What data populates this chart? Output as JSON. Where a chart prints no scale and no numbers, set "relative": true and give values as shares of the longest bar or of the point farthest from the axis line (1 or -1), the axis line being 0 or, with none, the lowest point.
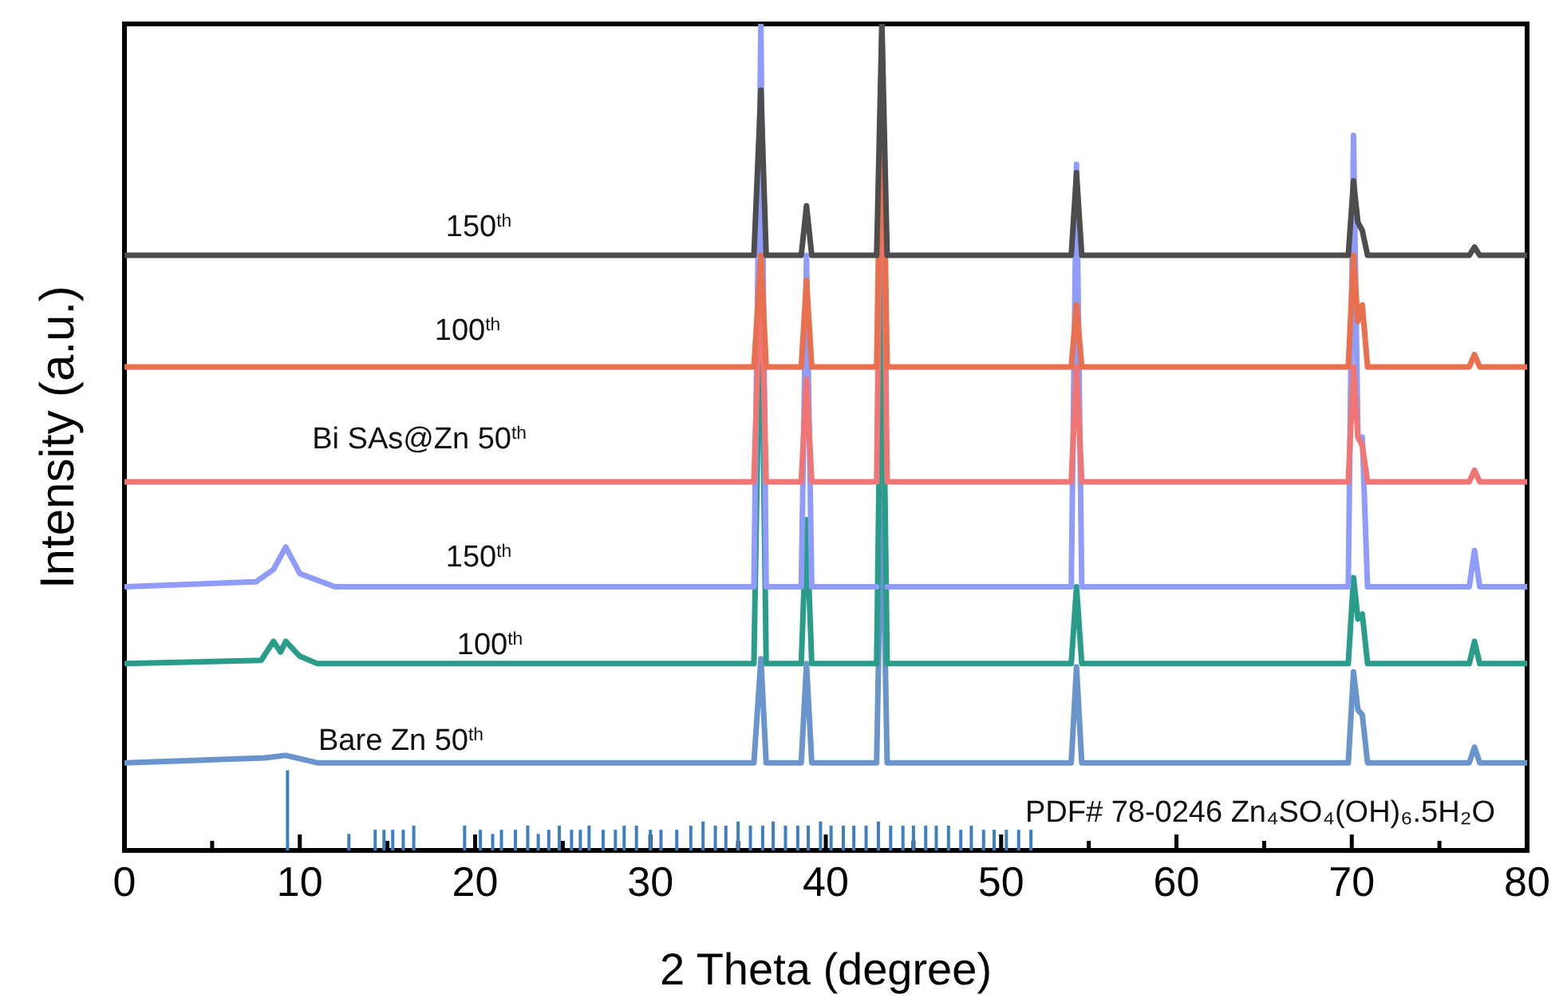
{
  "chart_data": {
    "type": "line",
    "relative": true,
    "xlabel": "2 Theta (degree)",
    "ylabel": "Intensity (a.u.)",
    "xlim": [
      0,
      80
    ],
    "xticks": [
      0,
      {
        "value": 5,
        "label": null
      },
      10,
      {
        "value": 15,
        "label": null
      },
      20,
      {
        "value": 25,
        "label": null
      },
      30,
      {
        "value": 35,
        "label": null
      },
      40,
      {
        "value": 45,
        "label": null
      },
      50,
      {
        "value": 55,
        "label": null
      },
      60,
      {
        "value": 65,
        "label": null
      },
      70,
      {
        "value": 75,
        "label": null
      },
      80
    ],
    "legend": false,
    "grid": false,
    "line_style": "solid",
    "marker": "none",
    "series": [
      {
        "name": "150$^{th}$",
        "color": "#4d4d4d",
        "x": [
          0,
          35.9,
          36.3,
          36.6,
          38.6,
          38.9,
          39.2,
          42.9,
          43.2,
          43.5,
          54.0,
          54.3,
          54.6,
          69.8,
          70.1,
          70.35,
          70.6,
          70.9,
          76.7,
          77.0,
          77.3,
          80
        ],
        "values": [
          0.72,
          0.72,
          0.92,
          0.72,
          0.72,
          0.78,
          0.72,
          0.72,
          1.0,
          0.72,
          0.72,
          0.82,
          0.72,
          0.72,
          0.81,
          0.76,
          0.75,
          0.72,
          0.72,
          0.73,
          0.72,
          0.72
        ]
      },
      {
        "name": "100$^{th}$",
        "color": "#e8704f",
        "x": [
          0,
          35.9,
          36.3,
          36.6,
          38.6,
          38.9,
          39.2,
          42.9,
          43.2,
          43.5,
          54.0,
          54.3,
          54.6,
          69.8,
          70.1,
          70.35,
          70.6,
          70.9,
          76.7,
          77.0,
          77.3,
          80
        ],
        "values": [
          0.585,
          0.585,
          0.72,
          0.585,
          0.585,
          0.69,
          0.585,
          0.585,
          0.98,
          0.585,
          0.585,
          0.66,
          0.585,
          0.585,
          0.72,
          0.64,
          0.66,
          0.585,
          0.585,
          0.6,
          0.585,
          0.585
        ]
      },
      {
        "name": "Bi SAs@Zn 50$^{th}$",
        "color": "#f07575",
        "x": [
          0,
          35.9,
          36.3,
          36.6,
          38.6,
          38.9,
          39.2,
          42.9,
          43.2,
          43.5,
          54.0,
          54.3,
          54.6,
          69.8,
          70.1,
          70.35,
          70.6,
          70.9,
          76.7,
          77.0,
          77.3,
          80
        ],
        "values": [
          0.446,
          0.446,
          0.72,
          0.446,
          0.446,
          0.57,
          0.446,
          0.446,
          1.0,
          0.446,
          0.446,
          0.585,
          0.446,
          0.446,
          0.585,
          0.5,
          0.49,
          0.446,
          0.446,
          0.46,
          0.446,
          0.446
        ]
      },
      {
        "name": "150$^{th}$",
        "color": "#8f9cfa",
        "x": [
          0,
          7.5,
          8.5,
          9.2,
          10,
          12,
          35.9,
          36.3,
          36.6,
          38.6,
          38.9,
          39.2,
          42.9,
          43.2,
          43.5,
          54.0,
          54.3,
          54.6,
          69.8,
          70.1,
          70.35,
          70.6,
          70.9,
          76.7,
          77.0,
          77.3,
          80
        ],
        "values": [
          0.319,
          0.325,
          0.34,
          0.367,
          0.335,
          0.319,
          0.319,
          1.0,
          0.319,
          0.319,
          0.72,
          0.319,
          0.319,
          null,
          0.319,
          0.319,
          0.83,
          0.319,
          0.319,
          0.865,
          0.5,
          0.5,
          0.319,
          0.319,
          0.363,
          0.319,
          0.319
        ]
      },
      {
        "name": "100$^{th}$",
        "color": "#2a9d8a",
        "x": [
          0,
          7.8,
          8.5,
          8.9,
          9.2,
          10,
          11,
          35.9,
          36.3,
          36.6,
          38.6,
          38.9,
          39.2,
          42.9,
          43.2,
          43.5,
          54.0,
          54.3,
          54.6,
          69.8,
          70.1,
          70.35,
          70.6,
          70.9,
          76.7,
          77.0,
          77.3,
          80
        ],
        "values": [
          0.226,
          0.23,
          0.253,
          0.24,
          0.253,
          0.235,
          0.226,
          0.226,
          0.72,
          0.226,
          0.226,
          0.4,
          0.226,
          0.226,
          0.72,
          0.226,
          0.226,
          0.319,
          0.226,
          0.226,
          0.33,
          0.28,
          0.286,
          0.226,
          0.226,
          0.253,
          0.226,
          0.226
        ]
      },
      {
        "name": "Bare Zn 50$^{th}$",
        "color": "#6a95cc",
        "x": [
          0,
          8,
          9.2,
          11,
          35.9,
          36.3,
          36.6,
          38.6,
          38.9,
          39.2,
          42.9,
          43.2,
          43.5,
          54.0,
          54.3,
          54.6,
          69.8,
          70.1,
          70.35,
          70.6,
          70.9,
          76.7,
          77.0,
          77.3,
          80
        ],
        "values": [
          0.106,
          0.112,
          0.115,
          0.106,
          0.106,
          0.232,
          0.106,
          0.106,
          0.226,
          0.106,
          0.106,
          0.45,
          0.106,
          0.106,
          0.222,
          0.106,
          0.106,
          0.216,
          0.17,
          0.164,
          0.106,
          0.106,
          0.125,
          0.106,
          0.106
        ]
      },
      {
        "name": "PDF# 78-0246 Zn₄SO₄(OH)₆.5H₂O",
        "type": "bar",
        "color": "#3f7fbf",
        "x": [
          9.3,
          12.8,
          14.3,
          14.8,
          15.3,
          15.9,
          16.5,
          19.4,
          20.3,
          21,
          21.5,
          22.3,
          23,
          23.6,
          24.2,
          24.8,
          25.5,
          26,
          26.5,
          27.3,
          28,
          28.5,
          29.2,
          30,
          30.6,
          31.5,
          32.3,
          33,
          33.7,
          34.3,
          35,
          35.7,
          36.4,
          37,
          37.7,
          38.4,
          39,
          39.7,
          40.3,
          41,
          41.6,
          42.3,
          43,
          43.7,
          44.4,
          45,
          45.7,
          46.3,
          47,
          47.7,
          48.3,
          49,
          49.6,
          50.3,
          51,
          51.7
        ],
        "values": [
          0.097,
          0.02,
          0.025,
          0.025,
          0.025,
          0.025,
          0.03,
          0.03,
          0.025,
          0.02,
          0.025,
          0.025,
          0.03,
          0.02,
          0.025,
          0.03,
          0.025,
          0.025,
          0.03,
          0.025,
          0.025,
          0.03,
          0.03,
          0.025,
          0.025,
          0.025,
          0.03,
          0.035,
          0.03,
          0.03,
          0.035,
          0.03,
          0.03,
          0.035,
          0.03,
          0.03,
          0.03,
          0.035,
          0.03,
          0.03,
          0.03,
          0.03,
          0.035,
          0.03,
          0.03,
          0.03,
          0.03,
          0.03,
          0.03,
          0.025,
          0.03,
          0.025,
          0.025,
          0.025,
          0.025,
          0.025
        ]
      }
    ]
  }
}
